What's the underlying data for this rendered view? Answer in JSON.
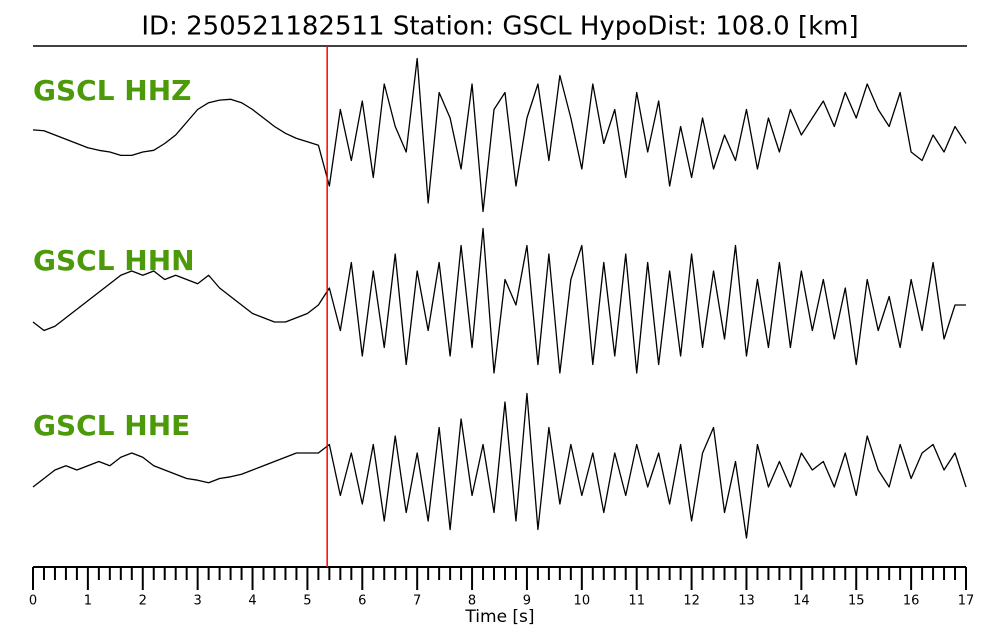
{
  "chart_data": {
    "type": "line",
    "title": "ID: 250521182511   Station: GSCL   HypoDist:   108.0 [km]",
    "xlabel": "Time [s]",
    "x": [
      0,
      0.2,
      0.4,
      0.6,
      0.8,
      1,
      1.2,
      1.4,
      1.6,
      1.8,
      2,
      2.2,
      2.4,
      2.6,
      2.8,
      3,
      3.2,
      3.4,
      3.6,
      3.8,
      4,
      4.2,
      4.4,
      4.6,
      4.8,
      5,
      5.2,
      5.4,
      5.6,
      5.8,
      6,
      6.2,
      6.4,
      6.6,
      6.8,
      7,
      7.2,
      7.4,
      7.6,
      7.8,
      8,
      8.2,
      8.4,
      8.6,
      8.8,
      9,
      9.2,
      9.4,
      9.6,
      9.8,
      10,
      10.2,
      10.4,
      10.6,
      10.8,
      11,
      11.2,
      11.4,
      11.6,
      11.8,
      12,
      12.2,
      12.4,
      12.6,
      12.8,
      13,
      13.2,
      13.4,
      13.6,
      13.8,
      14,
      14.2,
      14.4,
      14.6,
      14.8,
      15,
      15.2,
      15.4,
      15.6,
      15.8,
      16,
      16.2,
      16.4,
      16.6,
      16.8,
      17
    ],
    "xlim": [
      0,
      17
    ],
    "xticks": [
      0,
      1,
      2,
      3,
      4,
      5,
      6,
      7,
      8,
      9,
      10,
      11,
      12,
      13,
      14,
      15,
      16,
      17
    ],
    "xminorticks": [
      0.2,
      0.4,
      0.6,
      0.8,
      1.2,
      1.4,
      1.6,
      1.8,
      2.2,
      2.4,
      2.6,
      2.8,
      3.2,
      3.4,
      3.6,
      3.8,
      4.2,
      4.4,
      4.6,
      4.8,
      5.2,
      5.4,
      5.6,
      5.8,
      6.2,
      6.4,
      6.6,
      6.8,
      7.2,
      7.4,
      7.6,
      7.8,
      8.2,
      8.4,
      8.6,
      8.8,
      9.2,
      9.4,
      9.6,
      9.8,
      10.2,
      10.4,
      10.6,
      10.8,
      11.2,
      11.4,
      11.6,
      11.8,
      12.2,
      12.4,
      12.6,
      12.8,
      13.2,
      13.4,
      13.6,
      13.8,
      14.2,
      14.4,
      14.6,
      14.8,
      15.2,
      15.4,
      15.6,
      15.8,
      16.2,
      16.4,
      16.6,
      16.8
    ],
    "ylim": [
      -1,
      1
    ],
    "label_color": "#4c9a0a",
    "vlines": [
      {
        "x": 5.36,
        "color": "#ff0000"
      }
    ],
    "series": [
      {
        "name": "GSCL HHZ",
        "color": "#000000",
        "values": [
          0.06,
          0.05,
          0.0,
          -0.05,
          -0.1,
          -0.15,
          -0.18,
          -0.2,
          -0.24,
          -0.24,
          -0.2,
          -0.18,
          -0.1,
          0.0,
          0.15,
          0.3,
          0.38,
          0.41,
          0.42,
          0.38,
          0.3,
          0.2,
          0.1,
          0.02,
          -0.04,
          -0.08,
          -0.12,
          -0.6,
          0.3,
          -0.3,
          0.4,
          -0.5,
          0.6,
          0.1,
          -0.2,
          0.9,
          -0.8,
          0.5,
          0.2,
          -0.4,
          0.6,
          -0.9,
          0.3,
          0.5,
          -0.6,
          0.2,
          0.6,
          -0.3,
          0.7,
          0.2,
          -0.4,
          0.6,
          -0.1,
          0.3,
          -0.5,
          0.5,
          -0.2,
          0.4,
          -0.6,
          0.1,
          -0.5,
          0.2,
          -0.4,
          0.0,
          -0.3,
          0.3,
          -0.4,
          0.2,
          -0.2,
          0.3,
          0.0,
          0.2,
          0.4,
          0.1,
          0.5,
          0.2,
          0.6,
          0.3,
          0.1,
          0.5,
          -0.2,
          -0.3,
          0.0,
          -0.2,
          0.1,
          -0.1
        ]
      },
      {
        "name": "GSCL HHN",
        "color": "#000000",
        "values": [
          -0.2,
          -0.3,
          -0.25,
          -0.15,
          -0.05,
          0.05,
          0.15,
          0.25,
          0.35,
          0.4,
          0.35,
          0.4,
          0.3,
          0.35,
          0.3,
          0.25,
          0.35,
          0.2,
          0.1,
          0.0,
          -0.1,
          -0.15,
          -0.2,
          -0.2,
          -0.15,
          -0.1,
          0.0,
          0.2,
          -0.3,
          0.5,
          -0.6,
          0.4,
          -0.5,
          0.6,
          -0.7,
          0.4,
          -0.3,
          0.5,
          -0.6,
          0.7,
          -0.5,
          0.9,
          -0.8,
          0.3,
          0.0,
          0.7,
          -0.7,
          0.6,
          -0.8,
          0.3,
          0.7,
          -0.7,
          0.5,
          -0.6,
          0.6,
          -0.8,
          0.5,
          -0.7,
          0.4,
          -0.6,
          0.6,
          -0.5,
          0.4,
          -0.4,
          0.7,
          -0.6,
          0.3,
          -0.5,
          0.5,
          -0.5,
          0.4,
          -0.3,
          0.3,
          -0.4,
          0.2,
          -0.7,
          0.3,
          -0.3,
          0.1,
          -0.5,
          0.3,
          -0.3,
          0.5,
          -0.4,
          0.0,
          0.0
        ]
      },
      {
        "name": "GSCL HHE",
        "color": "#000000",
        "values": [
          -0.2,
          -0.1,
          0.0,
          0.05,
          0.0,
          0.05,
          0.1,
          0.05,
          0.15,
          0.2,
          0.15,
          0.05,
          0.0,
          -0.05,
          -0.1,
          -0.12,
          -0.15,
          -0.1,
          -0.08,
          -0.05,
          0.0,
          0.05,
          0.1,
          0.15,
          0.2,
          0.2,
          0.2,
          0.3,
          -0.3,
          0.2,
          -0.4,
          0.3,
          -0.6,
          0.4,
          -0.5,
          0.2,
          -0.6,
          0.5,
          -0.7,
          0.6,
          -0.3,
          0.3,
          -0.5,
          0.8,
          -0.6,
          0.9,
          -0.7,
          0.5,
          -0.4,
          0.3,
          -0.3,
          0.2,
          -0.5,
          0.2,
          -0.3,
          0.3,
          -0.2,
          0.2,
          -0.4,
          0.3,
          -0.6,
          0.2,
          0.5,
          -0.5,
          0.1,
          -0.8,
          0.3,
          -0.2,
          0.1,
          -0.2,
          0.2,
          0.0,
          0.1,
          -0.2,
          0.2,
          -0.3,
          0.4,
          0.0,
          -0.2,
          0.3,
          -0.1,
          0.2,
          0.3,
          0.0,
          0.2,
          -0.2
        ]
      }
    ]
  }
}
